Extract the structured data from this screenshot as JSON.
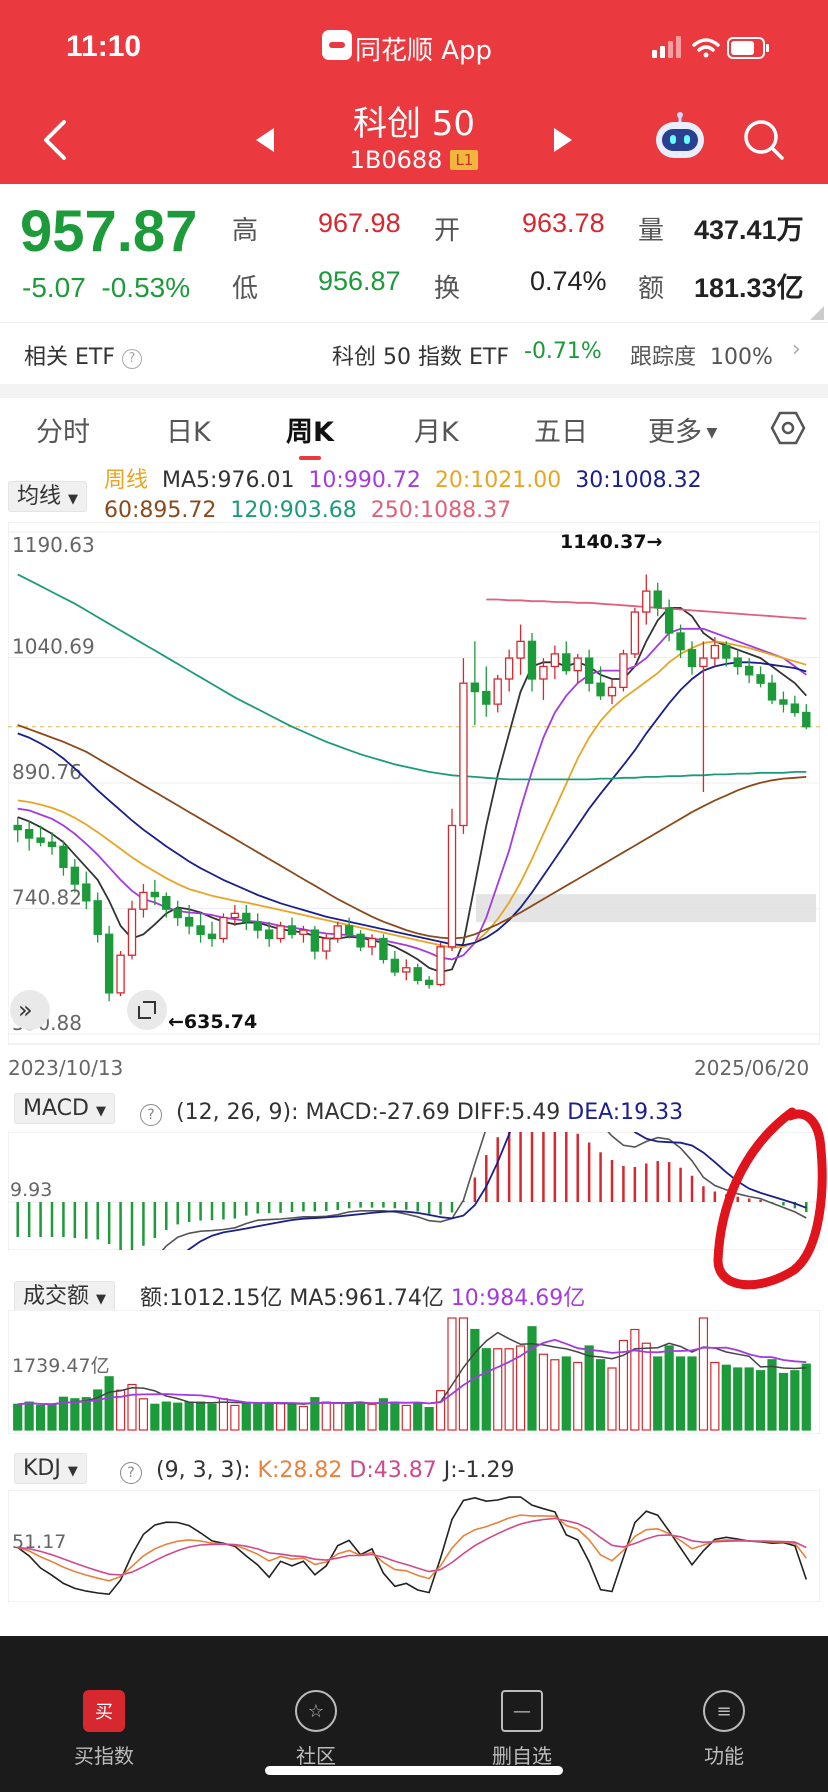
{
  "status_bar": {
    "time": "11:10",
    "app_name": "同花顺 App"
  },
  "header": {
    "title": "科创 50",
    "code": "1B0688",
    "level_tag": "L1"
  },
  "quote": {
    "price": "957.87",
    "change": "-5.07",
    "change_pct": "-0.53%",
    "high_label": "高",
    "high": "967.98",
    "low_label": "低",
    "low": "956.87",
    "open_label": "开",
    "open": "963.78",
    "turnover_label": "换",
    "turnover": "0.74%",
    "volume_label": "量",
    "volume": "437.41万",
    "amount_label": "额",
    "amount": "181.33亿"
  },
  "etf": {
    "label": "相关 ETF",
    "name": "科创 50 指数 ETF",
    "change": "-0.71%",
    "track_label": "跟踪度",
    "track": "100%"
  },
  "tabs": [
    "分时",
    "日K",
    "周K",
    "月K",
    "五日",
    "更多"
  ],
  "active_tab": "周K",
  "ma_legend": {
    "selector": "均线",
    "period": "周线",
    "ma5": "MA5:976.01",
    "ma10": "10:990.72",
    "ma20": "20:1021.00",
    "ma30": "30:1008.32",
    "ma60": "60:895.72",
    "ma120": "120:903.68",
    "ma250": "250:1088.37"
  },
  "chart_data": [
    {
      "type": "candlestick",
      "title": "科创 50 周K",
      "y_ticks": [
        "1190.63",
        "1040.69",
        "890.76",
        "740.82",
        "590.88"
      ],
      "x_start": "2023/10/13",
      "x_end": "2025/06/20",
      "high_annotation": "1140.37→",
      "low_annotation": "←635.74",
      "candles": [
        [
          840,
          850,
          820,
          835
        ],
        [
          835,
          845,
          810,
          825
        ],
        [
          825,
          840,
          815,
          820
        ],
        [
          820,
          832,
          805,
          815
        ],
        [
          815,
          822,
          780,
          790
        ],
        [
          790,
          800,
          760,
          770
        ],
        [
          770,
          785,
          740,
          750
        ],
        [
          750,
          760,
          700,
          710
        ],
        [
          710,
          720,
          630,
          640
        ],
        [
          640,
          690,
          636,
          685
        ],
        [
          685,
          750,
          680,
          740
        ],
        [
          740,
          770,
          730,
          760
        ],
        [
          760,
          775,
          745,
          755
        ],
        [
          755,
          760,
          730,
          740
        ],
        [
          740,
          750,
          720,
          730
        ],
        [
          730,
          745,
          710,
          720
        ],
        [
          720,
          735,
          700,
          710
        ],
        [
          710,
          725,
          695,
          705
        ],
        [
          705,
          735,
          700,
          730
        ],
        [
          730,
          745,
          720,
          735
        ],
        [
          735,
          745,
          715,
          725
        ],
        [
          725,
          735,
          705,
          715
        ],
        [
          715,
          725,
          695,
          705
        ],
        [
          705,
          725,
          700,
          720
        ],
        [
          720,
          730,
          705,
          710
        ],
        [
          710,
          720,
          700,
          715
        ],
        [
          715,
          720,
          680,
          690
        ],
        [
          690,
          710,
          680,
          705
        ],
        [
          705,
          725,
          700,
          720
        ],
        [
          720,
          730,
          705,
          710
        ],
        [
          710,
          715,
          690,
          695
        ],
        [
          695,
          710,
          685,
          705
        ],
        [
          705,
          710,
          675,
          680
        ],
        [
          680,
          690,
          660,
          665
        ],
        [
          665,
          680,
          655,
          670
        ],
        [
          670,
          675,
          650,
          655
        ],
        [
          655,
          660,
          645,
          650
        ],
        [
          650,
          700,
          648,
          695
        ],
        [
          695,
          860,
          690,
          840
        ],
        [
          840,
          1040,
          830,
          1010
        ],
        [
          1010,
          1060,
          960,
          1000
        ],
        [
          1000,
          1030,
          970,
          985
        ],
        [
          985,
          1020,
          975,
          1015
        ],
        [
          1015,
          1050,
          1000,
          1040
        ],
        [
          1040,
          1080,
          1020,
          1060
        ],
        [
          1060,
          1070,
          1000,
          1015
        ],
        [
          1015,
          1040,
          990,
          1030
        ],
        [
          1030,
          1055,
          1015,
          1045
        ],
        [
          1045,
          1060,
          1020,
          1025
        ],
        [
          1025,
          1045,
          1010,
          1040
        ],
        [
          1040,
          1050,
          1000,
          1010
        ],
        [
          1010,
          1030,
          990,
          995
        ],
        [
          995,
          1015,
          985,
          1005
        ],
        [
          1005,
          1050,
          1000,
          1045
        ],
        [
          1045,
          1100,
          1040,
          1095
        ],
        [
          1095,
          1140,
          1080,
          1120
        ],
        [
          1120,
          1130,
          1090,
          1100
        ],
        [
          1100,
          1110,
          1060,
          1070
        ],
        [
          1070,
          1080,
          1040,
          1050
        ],
        [
          1050,
          1060,
          1020,
          1030
        ],
        [
          1030,
          1060,
          880,
          1040
        ],
        [
          1040,
          1065,
          1030,
          1055
        ],
        [
          1055,
          1060,
          1030,
          1040
        ],
        [
          1040,
          1050,
          1020,
          1030
        ],
        [
          1030,
          1040,
          1010,
          1020
        ],
        [
          1020,
          1030,
          1005,
          1010
        ],
        [
          1010,
          1020,
          985,
          990
        ],
        [
          990,
          1000,
          975,
          985
        ],
        [
          985,
          995,
          970,
          975
        ],
        [
          975,
          985,
          955,
          958
        ]
      ],
      "ma_lines": {
        "ma5": [
          850,
          845,
          838,
          830,
          820,
          805,
          790,
          775,
          750,
          720,
          705,
          710,
          722,
          735,
          742,
          740,
          736,
          730,
          725,
          722,
          724,
          724,
          720,
          716,
          714,
          712,
          708,
          705,
          705,
          707,
          706,
          703,
          700,
          695,
          688,
          680,
          670,
          665,
          668,
          700,
          770,
          840,
          900,
          950,
          1000,
          1030,
          1035,
          1035,
          1030,
          1035,
          1030,
          1020,
          1015,
          1015,
          1030,
          1060,
          1085,
          1100,
          1100,
          1090,
          1070,
          1060,
          1055,
          1050,
          1045,
          1040,
          1030,
          1020,
          1010,
          995
        ],
        "ma10": [
          860,
          858,
          853,
          848,
          840,
          830,
          818,
          805,
          790,
          775,
          762,
          752,
          748,
          742,
          738,
          736,
          735,
          733,
          730,
          728,
          726,
          725,
          723,
          720,
          718,
          716,
          713,
          711,
          710,
          709,
          707,
          705,
          703,
          700,
          697,
          693,
          688,
          682,
          680,
          685,
          700,
          730,
          770,
          810,
          860,
          905,
          945,
          975,
          995,
          1010,
          1020,
          1025,
          1025,
          1025,
          1030,
          1040,
          1055,
          1070,
          1075,
          1075,
          1075,
          1070,
          1065,
          1060,
          1055,
          1050,
          1045,
          1040,
          1030,
          1020
        ],
        "ma20": [
          870,
          868,
          865,
          861,
          856,
          849,
          841,
          832,
          822,
          812,
          802,
          793,
          785,
          777,
          770,
          764,
          760,
          756,
          753,
          750,
          748,
          745,
          742,
          739,
          736,
          733,
          730,
          727,
          724,
          721,
          718,
          715,
          712,
          709,
          706,
          703,
          700,
          697,
          694,
          695,
          700,
          712,
          728,
          748,
          772,
          800,
          830,
          860,
          890,
          920,
          945,
          965,
          980,
          992,
          1002,
          1012,
          1022,
          1035,
          1045,
          1052,
          1058,
          1060,
          1058,
          1055,
          1052,
          1048,
          1044,
          1040,
          1036,
          1032
        ],
        "ma30": [
          950,
          945,
          938,
          930,
          920,
          908,
          895,
          882,
          870,
          858,
          846,
          835,
          825,
          815,
          806,
          797,
          789,
          782,
          775,
          769,
          763,
          757,
          752,
          747,
          743,
          739,
          735,
          731,
          728,
          725,
          722,
          719,
          716,
          713,
          710,
          707,
          704,
          701,
          698,
          697,
          700,
          706,
          715,
          727,
          742,
          760,
          780,
          800,
          820,
          840,
          860,
          878,
          895,
          912,
          930,
          950,
          968,
          986,
          1002,
          1015,
          1025,
          1030,
          1033,
          1035,
          1035,
          1034,
          1032,
          1030,
          1028,
          1024
        ],
        "ma60": [
          960,
          955,
          950,
          945,
          940,
          934,
          928,
          920,
          912,
          904,
          896,
          888,
          880,
          872,
          864,
          856,
          848,
          840,
          832,
          824,
          816,
          808,
          800,
          792,
          784,
          776,
          768,
          760,
          752,
          745,
          738,
          731,
          725,
          720,
          715,
          711,
          708,
          706,
          705,
          706,
          710,
          716,
          722,
          729,
          736,
          744,
          752,
          760,
          768,
          776,
          784,
          792,
          800,
          808,
          816,
          824,
          832,
          840,
          848,
          856,
          863,
          870,
          876,
          882,
          887,
          891,
          894,
          896,
          897,
          898
        ],
        "ma120": [
          1140,
          1133,
          1126,
          1119,
          1112,
          1105,
          1097,
          1089,
          1081,
          1073,
          1065,
          1057,
          1049,
          1041,
          1033,
          1025,
          1017,
          1009,
          1001,
          993,
          986,
          979,
          972,
          965,
          958,
          952,
          946,
          940,
          935,
          930,
          925,
          921,
          917,
          913,
          910,
          907,
          904,
          902,
          900,
          899,
          898,
          897,
          896,
          895,
          895,
          895,
          895,
          895,
          895,
          895,
          895,
          896,
          896,
          897,
          897,
          898,
          898,
          899,
          899,
          900,
          900,
          901,
          901,
          902,
          902,
          903,
          903,
          903,
          904,
          904
        ],
        "ma250": [
          null,
          null,
          null,
          null,
          null,
          null,
          null,
          null,
          null,
          null,
          null,
          null,
          null,
          null,
          null,
          null,
          null,
          null,
          null,
          null,
          null,
          null,
          null,
          null,
          null,
          null,
          null,
          null,
          null,
          null,
          null,
          null,
          null,
          null,
          null,
          null,
          null,
          null,
          null,
          null,
          null,
          1110,
          1110,
          1109,
          1109,
          1108,
          1108,
          1107,
          1107,
          1106,
          1106,
          1105,
          1104,
          1103,
          1102,
          1101,
          1100,
          1099,
          1098,
          1097,
          1096,
          1095,
          1094,
          1093,
          1092,
          1091,
          1090,
          1089,
          1088,
          1087
        ]
      },
      "ylim": [
        590.88,
        1190.63
      ]
    },
    {
      "type": "bar",
      "title": "MACD",
      "params": "(12, 26, 9):",
      "macd_label": "MACD:-27.69",
      "diff_label": "DIFF:5.49",
      "dea_label": "DEA:19.33",
      "y_tick": "9.93"
    },
    {
      "type": "bar",
      "title": "成交额",
      "amount_label": "额:1012.15亿",
      "ma5_label": "MA5:961.74亿",
      "ma10_label": "10:984.69亿",
      "y_tick": "1739.47亿"
    },
    {
      "type": "line",
      "title": "KDJ",
      "params": "(9, 3, 3):",
      "k_label": "K:28.82",
      "d_label": "D:43.87",
      "j_label": "J:-1.29",
      "y_tick": "51.17"
    }
  ],
  "colors": {
    "header": "#ea3a3f",
    "up": "#d6282e",
    "down": "#1d9a3a",
    "ma5": "#333333",
    "ma10": "#a33be0",
    "ma20": "#e8a523",
    "ma30": "#1a1f8c",
    "ma60": "#8a4a1a",
    "ma120": "#1d9a7a",
    "ma250": "#e0607a"
  },
  "bottom_nav": [
    {
      "label": "买指数",
      "icon": "buy-icon",
      "glyph": "买"
    },
    {
      "label": "社区",
      "icon": "community-icon",
      "glyph": "☆"
    },
    {
      "label": "删自选",
      "icon": "remove-watchlist-icon",
      "glyph": "—"
    },
    {
      "label": "功能",
      "icon": "menu-icon",
      "glyph": "≡"
    }
  ]
}
